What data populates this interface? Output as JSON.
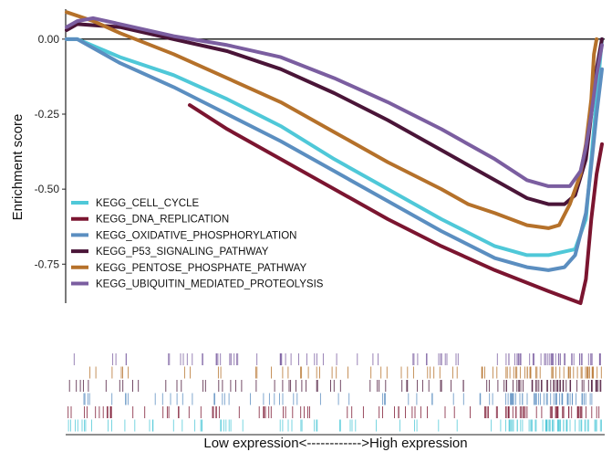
{
  "chart_data": {
    "type": "line",
    "title": "",
    "ylabel": "Enrichment score",
    "xlabel": "Low expression<------------>High expression",
    "ylim": [
      -0.88,
      0.1
    ],
    "xlim": [
      0,
      1
    ],
    "yticks": [
      {
        "value": 0.0,
        "label": "0.00"
      },
      {
        "value": -0.25,
        "label": "-0.25"
      },
      {
        "value": -0.5,
        "label": "-0.50"
      },
      {
        "value": -0.75,
        "label": "-0.75"
      }
    ],
    "grid": false,
    "legend_position": "bottom-left",
    "series": [
      {
        "name": "KEGG_CELL_CYCLE",
        "color": "#4fc8d8",
        "x": [
          0,
          0.02,
          0.1,
          0.2,
          0.3,
          0.4,
          0.5,
          0.6,
          0.7,
          0.8,
          0.86,
          0.9,
          0.95,
          0.97,
          0.98,
          0.99,
          1.0
        ],
        "y": [
          0.0,
          0.0,
          -0.06,
          -0.12,
          -0.2,
          -0.29,
          -0.4,
          -0.5,
          -0.6,
          -0.69,
          -0.72,
          -0.72,
          -0.7,
          -0.6,
          -0.4,
          -0.2,
          0.0
        ]
      },
      {
        "name": "KEGG_DNA_REPLICATION",
        "color": "#7b1530",
        "x": [
          0.23,
          0.3,
          0.4,
          0.5,
          0.6,
          0.7,
          0.8,
          0.9,
          0.96,
          0.97,
          0.98,
          0.99,
          1.0
        ],
        "y": [
          -0.22,
          -0.3,
          -0.4,
          -0.5,
          -0.6,
          -0.69,
          -0.77,
          -0.84,
          -0.88,
          -0.8,
          -0.6,
          -0.45,
          -0.35
        ]
      },
      {
        "name": "KEGG_OXIDATIVE_PHOSPHORYLATION",
        "color": "#5b8ec0",
        "x": [
          0,
          0.02,
          0.1,
          0.2,
          0.3,
          0.4,
          0.5,
          0.6,
          0.7,
          0.8,
          0.86,
          0.9,
          0.93,
          0.95,
          0.97,
          0.98,
          0.99,
          1.0
        ],
        "y": [
          0.0,
          0.0,
          -0.08,
          -0.16,
          -0.25,
          -0.34,
          -0.44,
          -0.54,
          -0.64,
          -0.73,
          -0.76,
          -0.77,
          -0.76,
          -0.72,
          -0.58,
          -0.42,
          -0.25,
          -0.1
        ]
      },
      {
        "name": "KEGG_P53_SIGNALING_PATHWAY",
        "color": "#4a1538",
        "x": [
          0,
          0.02,
          0.1,
          0.2,
          0.3,
          0.4,
          0.5,
          0.6,
          0.7,
          0.8,
          0.86,
          0.9,
          0.93,
          0.95,
          0.97,
          0.98,
          0.99,
          1.0
        ],
        "y": [
          0.03,
          0.05,
          0.04,
          0.0,
          -0.04,
          -0.1,
          -0.18,
          -0.27,
          -0.37,
          -0.47,
          -0.53,
          -0.55,
          -0.55,
          -0.52,
          -0.4,
          -0.25,
          -0.1,
          0.0
        ]
      },
      {
        "name": "KEGG_PENTOSE_PHOSPHATE_PATHWAY",
        "color": "#b5712a",
        "x": [
          0,
          0.05,
          0.1,
          0.2,
          0.3,
          0.4,
          0.5,
          0.6,
          0.7,
          0.75,
          0.8,
          0.86,
          0.9,
          0.92,
          0.94,
          0.96,
          0.97,
          0.98,
          0.985,
          0.99
        ],
        "y": [
          0.09,
          0.06,
          0.02,
          -0.05,
          -0.13,
          -0.21,
          -0.31,
          -0.41,
          -0.5,
          -0.55,
          -0.58,
          -0.62,
          -0.63,
          -0.62,
          -0.55,
          -0.45,
          -0.35,
          -0.2,
          -0.05,
          0.0
        ]
      },
      {
        "name": "KEGG_UBIQUITIN_MEDIATED_PROTEOLYSIS",
        "color": "#7b5ea0",
        "x": [
          0,
          0.02,
          0.05,
          0.1,
          0.2,
          0.3,
          0.4,
          0.5,
          0.6,
          0.7,
          0.8,
          0.86,
          0.9,
          0.94,
          0.96,
          0.97,
          0.98,
          0.99,
          1.0
        ],
        "y": [
          0.04,
          0.06,
          0.07,
          0.05,
          0.01,
          -0.02,
          -0.06,
          -0.13,
          -0.21,
          -0.3,
          -0.4,
          -0.47,
          -0.49,
          -0.49,
          -0.44,
          -0.36,
          -0.25,
          -0.12,
          -0.02
        ]
      }
    ]
  }
}
